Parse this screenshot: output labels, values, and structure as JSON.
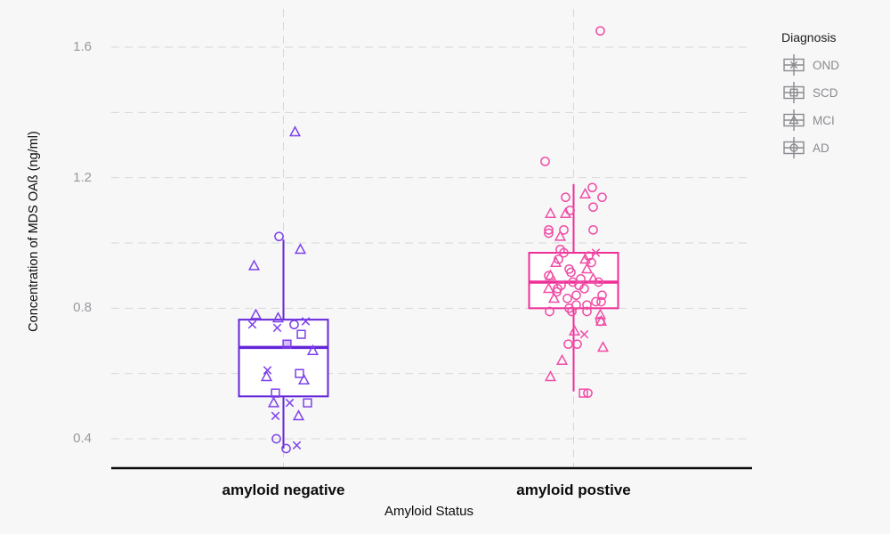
{
  "chart_data": {
    "type": "boxplot_jitter",
    "title": "",
    "xlabel": "Amyloid Status",
    "ylabel": "Concentration of MDS OAß (ng/ml)",
    "categories": [
      "amyloid negative",
      "amyloid postive"
    ],
    "ylim": [
      0.32,
      1.72
    ],
    "yticks": [
      1.6,
      1.2,
      0.8,
      0.4
    ],
    "ytick_labels": [
      "1.6",
      "1.2",
      "0.8",
      "0.4"
    ],
    "gridlines": [
      1.6,
      1.4,
      1.2,
      1.0,
      0.8,
      0.6,
      0.4
    ],
    "grid_on": true,
    "legend": {
      "title": "Diagnosis",
      "position": "top-right",
      "entries": [
        {
          "label": "OND",
          "marker": "x"
        },
        {
          "label": "SCD",
          "marker": "square"
        },
        {
          "label": "MCI",
          "marker": "triangle"
        },
        {
          "label": "AD",
          "marker": "circle"
        }
      ]
    },
    "style": {
      "background": "#f7f7f8",
      "grid_color": "#d7d7da",
      "axis_color": "#0b0b0c",
      "tick_label_color": "#98989e",
      "legend_gray": "#8a8a8f",
      "box_fill": "#ffffff"
    },
    "series": [
      {
        "name": "amyloid negative",
        "line_color": "#6526d9",
        "marker_color": "#7d41ea",
        "box": {
          "lo": 0.37,
          "q1": 0.53,
          "median": 0.68,
          "q3": 0.765,
          "hi": 1.01
        },
        "points": [
          {
            "d": "MCI",
            "v": 1.34,
            "dx": 13
          },
          {
            "d": "AD",
            "v": 1.02,
            "dx": -5
          },
          {
            "d": "MCI",
            "v": 0.98,
            "dx": 19
          },
          {
            "d": "MCI",
            "v": 0.93,
            "dx": -33
          },
          {
            "d": "MCI",
            "v": 0.78,
            "dx": -31
          },
          {
            "d": "OND",
            "v": 0.75,
            "dx": -35
          },
          {
            "d": "MCI",
            "v": 0.77,
            "dx": -6
          },
          {
            "d": "OND",
            "v": 0.74,
            "dx": -7
          },
          {
            "d": "AD",
            "v": 0.75,
            "dx": 12
          },
          {
            "d": "OND",
            "v": 0.76,
            "dx": 25
          },
          {
            "d": "SCD",
            "v": 0.72,
            "dx": 20
          },
          {
            "d": "SCD",
            "v": 0.69,
            "dx": 4,
            "fill": true
          },
          {
            "d": "MCI",
            "v": 0.67,
            "dx": 33
          },
          {
            "d": "OND",
            "v": 0.61,
            "dx": -18
          },
          {
            "d": "MCI",
            "v": 0.59,
            "dx": -19
          },
          {
            "d": "SCD",
            "v": 0.6,
            "dx": 18
          },
          {
            "d": "MCI",
            "v": 0.58,
            "dx": 23
          },
          {
            "d": "SCD",
            "v": 0.54,
            "dx": -9
          },
          {
            "d": "MCI",
            "v": 0.51,
            "dx": -11
          },
          {
            "d": "OND",
            "v": 0.51,
            "dx": 7
          },
          {
            "d": "SCD",
            "v": 0.51,
            "dx": 27
          },
          {
            "d": "OND",
            "v": 0.47,
            "dx": -9
          },
          {
            "d": "MCI",
            "v": 0.47,
            "dx": 17
          },
          {
            "d": "AD",
            "v": 0.4,
            "dx": -8
          },
          {
            "d": "AD",
            "v": 0.37,
            "dx": 3
          },
          {
            "d": "OND",
            "v": 0.38,
            "dx": 15
          }
        ]
      },
      {
        "name": "amyloid postive",
        "line_color": "#ee2f96",
        "marker_color": "#f04da6",
        "box": {
          "lo": 0.545,
          "q1": 0.8,
          "median": 0.88,
          "q3": 0.97,
          "hi": 1.18
        },
        "points": [
          {
            "d": "AD",
            "v": 1.65,
            "dx": 30
          },
          {
            "d": "AD",
            "v": 1.25,
            "dx": -32
          },
          {
            "d": "AD",
            "v": 1.17,
            "dx": 21
          },
          {
            "d": "MCI",
            "v": 1.15,
            "dx": 13
          },
          {
            "d": "AD",
            "v": 1.14,
            "dx": 32
          },
          {
            "d": "AD",
            "v": 1.14,
            "dx": -9
          },
          {
            "d": "AD",
            "v": 1.11,
            "dx": 22
          },
          {
            "d": "MCI",
            "v": 1.09,
            "dx": -26
          },
          {
            "d": "MCI",
            "v": 1.09,
            "dx": -9
          },
          {
            "d": "AD",
            "v": 1.1,
            "dx": -4
          },
          {
            "d": "AD",
            "v": 1.04,
            "dx": -28
          },
          {
            "d": "AD",
            "v": 1.03,
            "dx": -28
          },
          {
            "d": "AD",
            "v": 1.04,
            "dx": -11
          },
          {
            "d": "MCI",
            "v": 1.02,
            "dx": -15
          },
          {
            "d": "AD",
            "v": 1.04,
            "dx": 22
          },
          {
            "d": "OND",
            "v": 0.97,
            "dx": 25
          },
          {
            "d": "AD",
            "v": 0.98,
            "dx": -15
          },
          {
            "d": "AD",
            "v": 0.97,
            "dx": -11
          },
          {
            "d": "MCI",
            "v": 0.94,
            "dx": -20
          },
          {
            "d": "AD",
            "v": 0.95,
            "dx": -17
          },
          {
            "d": "MCI",
            "v": 0.95,
            "dx": 13
          },
          {
            "d": "AD",
            "v": 0.96,
            "dx": 17
          },
          {
            "d": "AD",
            "v": 0.94,
            "dx": 20
          },
          {
            "d": "MCI",
            "v": 0.92,
            "dx": 15
          },
          {
            "d": "AD",
            "v": 0.92,
            "dx": -5
          },
          {
            "d": "AD",
            "v": 0.91,
            "dx": -3
          },
          {
            "d": "MCI",
            "v": 0.9,
            "dx": -26
          },
          {
            "d": "AD",
            "v": 0.9,
            "dx": -28
          },
          {
            "d": "AD",
            "v": 0.89,
            "dx": 8
          },
          {
            "d": "MCI",
            "v": 0.89,
            "dx": 22
          },
          {
            "d": "AD",
            "v": 0.88,
            "dx": 28
          },
          {
            "d": "AD",
            "v": 0.86,
            "dx": 12
          },
          {
            "d": "AD",
            "v": 0.86,
            "dx": -18
          },
          {
            "d": "MCI",
            "v": 0.86,
            "dx": -28
          },
          {
            "d": "AD",
            "v": 0.87,
            "dx": -14
          },
          {
            "d": "AD",
            "v": 0.87,
            "dx": 6
          },
          {
            "d": "AD",
            "v": 0.88,
            "dx": -1
          },
          {
            "d": "AD",
            "v": 0.85,
            "dx": -19
          },
          {
            "d": "MCI",
            "v": 0.83,
            "dx": -22
          },
          {
            "d": "AD",
            "v": 0.83,
            "dx": -7
          },
          {
            "d": "AD",
            "v": 0.84,
            "dx": 3
          },
          {
            "d": "AD",
            "v": 0.84,
            "dx": 32
          },
          {
            "d": "AD",
            "v": 0.82,
            "dx": 31
          },
          {
            "d": "AD",
            "v": 0.82,
            "dx": 25
          },
          {
            "d": "AD",
            "v": 0.8,
            "dx": -5
          },
          {
            "d": "AD",
            "v": 0.81,
            "dx": 3
          },
          {
            "d": "AD",
            "v": 0.81,
            "dx": 15
          },
          {
            "d": "AD",
            "v": 0.79,
            "dx": -27
          },
          {
            "d": "AD",
            "v": 0.79,
            "dx": -2
          },
          {
            "d": "AD",
            "v": 0.79,
            "dx": 15
          },
          {
            "d": "MCI",
            "v": 0.78,
            "dx": 30
          },
          {
            "d": "MCI",
            "v": 0.76,
            "dx": 31
          },
          {
            "d": "AD",
            "v": 0.76,
            "dx": 30
          },
          {
            "d": "MCI",
            "v": 0.73,
            "dx": 1
          },
          {
            "d": "OND",
            "v": 0.72,
            "dx": 12
          },
          {
            "d": "AD",
            "v": 0.69,
            "dx": -6
          },
          {
            "d": "AD",
            "v": 0.69,
            "dx": 4
          },
          {
            "d": "MCI",
            "v": 0.68,
            "dx": 33
          },
          {
            "d": "MCI",
            "v": 0.64,
            "dx": -13
          },
          {
            "d": "MCI",
            "v": 0.59,
            "dx": -26
          },
          {
            "d": "SCD",
            "v": 0.54,
            "dx": 11
          },
          {
            "d": "AD",
            "v": 0.54,
            "dx": 16
          }
        ]
      }
    ]
  }
}
